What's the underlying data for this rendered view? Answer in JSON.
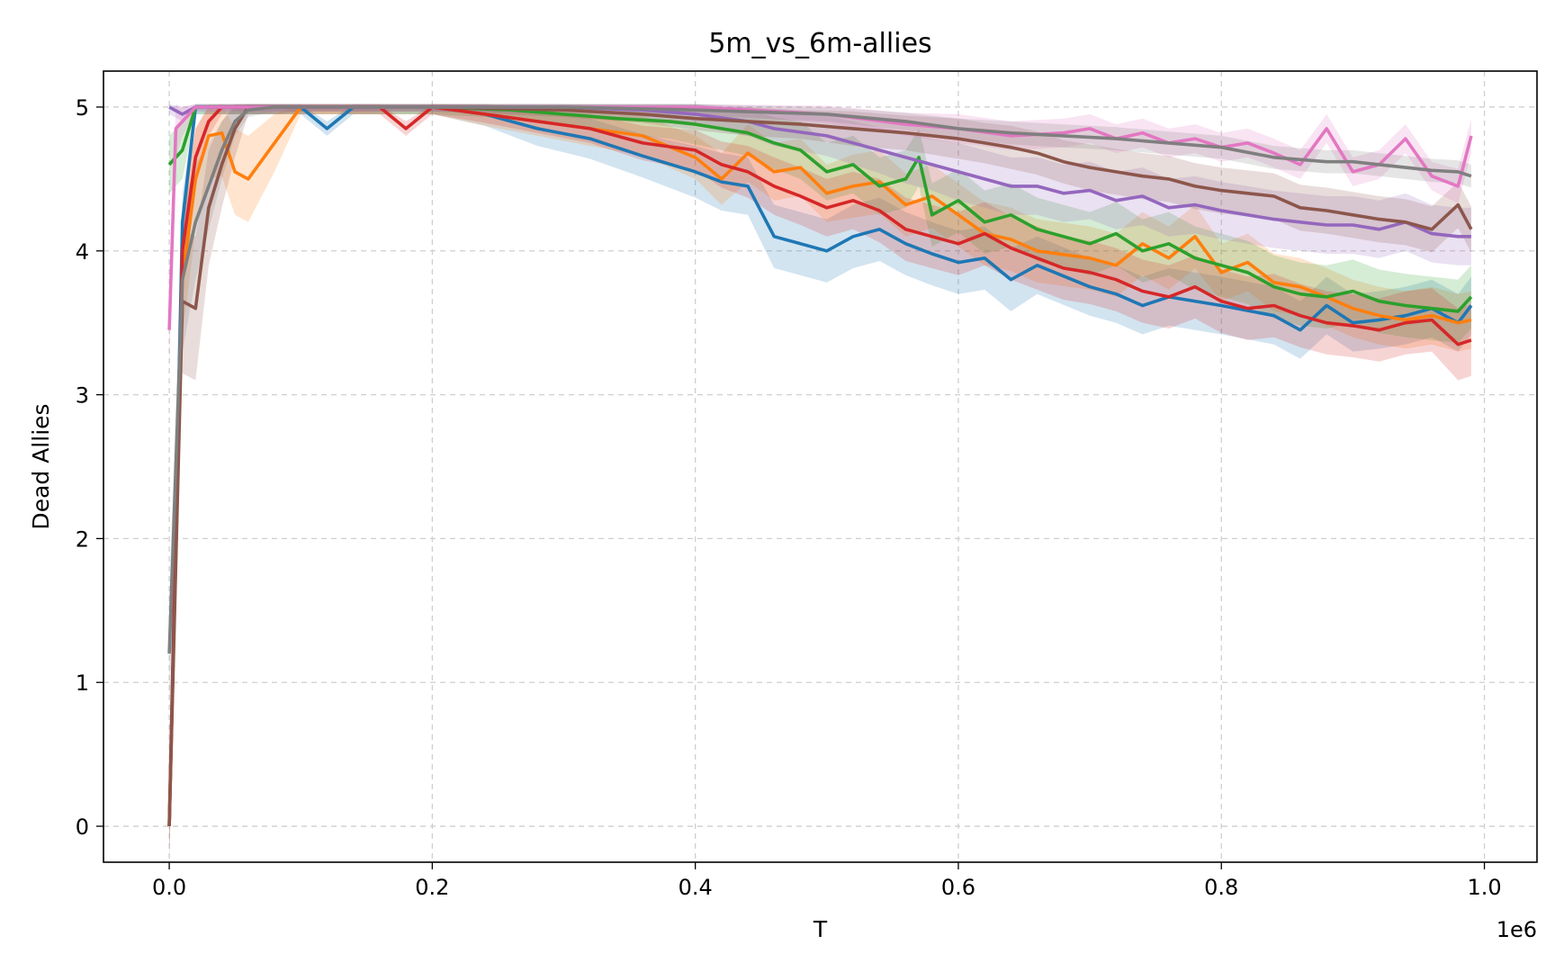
{
  "chart_data": {
    "type": "line",
    "title": "5m_vs_6m-allies",
    "xlabel": "T",
    "ylabel": "Dead Allies",
    "x_offset_label": "1e6",
    "xlim": [
      -0.05,
      1.04
    ],
    "ylim": [
      -0.25,
      5.25
    ],
    "x_ticks": [
      0.0,
      0.2,
      0.4,
      0.6,
      0.8,
      1.0
    ],
    "x_tick_labels": [
      "0.0",
      "0.2",
      "0.4",
      "0.6",
      "0.8",
      "1.0"
    ],
    "y_ticks": [
      0,
      1,
      2,
      3,
      4,
      5
    ],
    "y_tick_labels": [
      "0",
      "1",
      "2",
      "3",
      "4",
      "5"
    ],
    "grid": true,
    "legend": "none",
    "series": [
      {
        "color": "#1f77b4",
        "x": [
          0.0,
          0.01,
          0.02,
          0.04,
          0.06,
          0.1,
          0.12,
          0.14,
          0.2,
          0.24,
          0.28,
          0.32,
          0.36,
          0.4,
          0.42,
          0.44,
          0.46,
          0.48,
          0.5,
          0.52,
          0.54,
          0.56,
          0.58,
          0.6,
          0.62,
          0.64,
          0.66,
          0.7,
          0.72,
          0.74,
          0.76,
          0.8,
          0.84,
          0.86,
          0.88,
          0.9,
          0.92,
          0.94,
          0.96,
          0.98,
          0.99
        ],
        "y": [
          0.0,
          4.2,
          5.0,
          5.0,
          5.0,
          5.0,
          4.85,
          5.0,
          5.0,
          4.95,
          4.85,
          4.78,
          4.66,
          4.55,
          4.48,
          4.45,
          4.1,
          4.05,
          4.0,
          4.1,
          4.15,
          4.05,
          3.98,
          3.92,
          3.95,
          3.8,
          3.9,
          3.75,
          3.7,
          3.62,
          3.68,
          3.62,
          3.55,
          3.45,
          3.62,
          3.5,
          3.52,
          3.55,
          3.6,
          3.5,
          3.62
        ],
        "band": [
          0.2,
          0.2,
          0.05,
          0.05,
          0.05,
          0.05,
          0.05,
          0.05,
          0.05,
          0.08,
          0.12,
          0.14,
          0.15,
          0.18,
          0.2,
          0.2,
          0.22,
          0.22,
          0.22,
          0.22,
          0.22,
          0.22,
          0.22,
          0.22,
          0.22,
          0.22,
          0.2,
          0.2,
          0.2,
          0.2,
          0.2,
          0.2,
          0.2,
          0.2,
          0.2,
          0.2,
          0.2,
          0.2,
          0.2,
          0.2,
          0.2
        ]
      },
      {
        "color": "#ff7f0e",
        "x": [
          0.0,
          0.01,
          0.02,
          0.03,
          0.04,
          0.05,
          0.06,
          0.08,
          0.1,
          0.14,
          0.2,
          0.24,
          0.28,
          0.32,
          0.36,
          0.4,
          0.42,
          0.44,
          0.46,
          0.48,
          0.5,
          0.52,
          0.54,
          0.56,
          0.58,
          0.6,
          0.62,
          0.64,
          0.66,
          0.7,
          0.72,
          0.74,
          0.76,
          0.78,
          0.8,
          0.82,
          0.84,
          0.86,
          0.88,
          0.9,
          0.92,
          0.94,
          0.96,
          0.98,
          0.99
        ],
        "y": [
          0.0,
          3.8,
          4.5,
          4.8,
          4.82,
          4.55,
          4.5,
          4.75,
          5.0,
          5.0,
          5.0,
          4.95,
          4.9,
          4.85,
          4.8,
          4.65,
          4.5,
          4.68,
          4.55,
          4.58,
          4.4,
          4.45,
          4.48,
          4.32,
          4.38,
          4.25,
          4.12,
          4.08,
          4.0,
          3.95,
          3.9,
          4.05,
          3.95,
          4.1,
          3.85,
          3.92,
          3.78,
          3.75,
          3.68,
          3.6,
          3.55,
          3.52,
          3.55,
          3.5,
          3.52
        ],
        "band": [
          0.2,
          0.4,
          0.35,
          0.3,
          0.3,
          0.3,
          0.3,
          0.2,
          0.05,
          0.05,
          0.05,
          0.08,
          0.1,
          0.12,
          0.14,
          0.15,
          0.18,
          0.2,
          0.2,
          0.2,
          0.2,
          0.22,
          0.22,
          0.22,
          0.22,
          0.22,
          0.22,
          0.22,
          0.22,
          0.22,
          0.22,
          0.22,
          0.22,
          0.22,
          0.2,
          0.2,
          0.2,
          0.2,
          0.2,
          0.2,
          0.2,
          0.2,
          0.2,
          0.2,
          0.2
        ]
      },
      {
        "color": "#2ca02c",
        "x": [
          0.0,
          0.01,
          0.02,
          0.04,
          0.06,
          0.1,
          0.2,
          0.26,
          0.3,
          0.34,
          0.38,
          0.4,
          0.42,
          0.44,
          0.46,
          0.48,
          0.5,
          0.52,
          0.54,
          0.56,
          0.57,
          0.58,
          0.6,
          0.62,
          0.64,
          0.66,
          0.68,
          0.7,
          0.72,
          0.74,
          0.76,
          0.78,
          0.8,
          0.82,
          0.84,
          0.86,
          0.88,
          0.9,
          0.92,
          0.94,
          0.96,
          0.98,
          0.99
        ],
        "y": [
          4.6,
          4.7,
          5.0,
          5.0,
          5.0,
          5.0,
          5.0,
          4.98,
          4.95,
          4.92,
          4.9,
          4.88,
          4.85,
          4.82,
          4.75,
          4.7,
          4.55,
          4.6,
          4.45,
          4.5,
          4.65,
          4.25,
          4.35,
          4.2,
          4.25,
          4.15,
          4.1,
          4.05,
          4.12,
          4.0,
          4.05,
          3.95,
          3.9,
          3.85,
          3.75,
          3.7,
          3.68,
          3.72,
          3.65,
          3.62,
          3.6,
          3.58,
          3.68
        ],
        "band": [
          0.2,
          0.2,
          0.05,
          0.05,
          0.05,
          0.05,
          0.05,
          0.06,
          0.08,
          0.1,
          0.12,
          0.14,
          0.15,
          0.16,
          0.18,
          0.2,
          0.2,
          0.2,
          0.2,
          0.2,
          0.2,
          0.22,
          0.22,
          0.22,
          0.22,
          0.22,
          0.22,
          0.22,
          0.22,
          0.22,
          0.22,
          0.22,
          0.22,
          0.22,
          0.22,
          0.22,
          0.22,
          0.22,
          0.22,
          0.22,
          0.22,
          0.22,
          0.22
        ]
      },
      {
        "color": "#d62728",
        "x": [
          0.0,
          0.01,
          0.02,
          0.03,
          0.04,
          0.06,
          0.1,
          0.16,
          0.18,
          0.2,
          0.24,
          0.28,
          0.32,
          0.36,
          0.4,
          0.42,
          0.44,
          0.46,
          0.48,
          0.5,
          0.52,
          0.54,
          0.56,
          0.58,
          0.6,
          0.62,
          0.64,
          0.66,
          0.68,
          0.7,
          0.72,
          0.74,
          0.76,
          0.78,
          0.8,
          0.82,
          0.84,
          0.86,
          0.88,
          0.9,
          0.92,
          0.94,
          0.96,
          0.98,
          0.99
        ],
        "y": [
          0.0,
          4.0,
          4.65,
          4.9,
          5.0,
          5.0,
          5.0,
          5.0,
          4.85,
          5.0,
          4.95,
          4.9,
          4.85,
          4.75,
          4.7,
          4.6,
          4.55,
          4.45,
          4.38,
          4.3,
          4.35,
          4.28,
          4.15,
          4.1,
          4.05,
          4.12,
          4.02,
          3.95,
          3.88,
          3.85,
          3.8,
          3.72,
          3.68,
          3.75,
          3.65,
          3.6,
          3.62,
          3.55,
          3.5,
          3.48,
          3.45,
          3.5,
          3.52,
          3.35,
          3.38
        ],
        "band": [
          0.2,
          0.3,
          0.2,
          0.1,
          0.05,
          0.05,
          0.05,
          0.05,
          0.05,
          0.05,
          0.06,
          0.08,
          0.1,
          0.12,
          0.14,
          0.16,
          0.18,
          0.2,
          0.2,
          0.2,
          0.2,
          0.22,
          0.22,
          0.22,
          0.22,
          0.22,
          0.22,
          0.22,
          0.22,
          0.22,
          0.22,
          0.22,
          0.22,
          0.22,
          0.22,
          0.22,
          0.22,
          0.22,
          0.22,
          0.22,
          0.22,
          0.22,
          0.22,
          0.25,
          0.25
        ]
      },
      {
        "color": "#9467bd",
        "x": [
          0.0,
          0.01,
          0.02,
          0.04,
          0.1,
          0.2,
          0.3,
          0.36,
          0.4,
          0.44,
          0.46,
          0.5,
          0.52,
          0.54,
          0.56,
          0.58,
          0.6,
          0.62,
          0.64,
          0.66,
          0.68,
          0.7,
          0.72,
          0.74,
          0.76,
          0.78,
          0.8,
          0.82,
          0.84,
          0.86,
          0.88,
          0.9,
          0.92,
          0.94,
          0.96,
          0.98,
          0.99
        ],
        "y": [
          5.0,
          4.95,
          5.0,
          5.0,
          5.0,
          5.0,
          5.0,
          4.98,
          4.95,
          4.9,
          4.85,
          4.8,
          4.75,
          4.7,
          4.65,
          4.6,
          4.55,
          4.5,
          4.45,
          4.45,
          4.4,
          4.42,
          4.35,
          4.38,
          4.3,
          4.32,
          4.28,
          4.25,
          4.22,
          4.2,
          4.18,
          4.18,
          4.15,
          4.2,
          4.12,
          4.1,
          4.1
        ],
        "band": [
          0.05,
          0.05,
          0.03,
          0.03,
          0.03,
          0.03,
          0.05,
          0.06,
          0.08,
          0.1,
          0.12,
          0.14,
          0.15,
          0.16,
          0.18,
          0.18,
          0.2,
          0.2,
          0.2,
          0.2,
          0.2,
          0.2,
          0.2,
          0.2,
          0.2,
          0.2,
          0.2,
          0.2,
          0.2,
          0.2,
          0.2,
          0.2,
          0.2,
          0.2,
          0.2,
          0.2,
          0.2
        ]
      },
      {
        "color": "#8c564b",
        "x": [
          0.0,
          0.01,
          0.02,
          0.03,
          0.04,
          0.05,
          0.06,
          0.08,
          0.1,
          0.2,
          0.3,
          0.36,
          0.4,
          0.44,
          0.48,
          0.52,
          0.56,
          0.6,
          0.62,
          0.64,
          0.66,
          0.68,
          0.7,
          0.72,
          0.74,
          0.76,
          0.78,
          0.8,
          0.82,
          0.84,
          0.86,
          0.88,
          0.9,
          0.92,
          0.94,
          0.96,
          0.98,
          0.99
        ],
        "y": [
          0.0,
          3.65,
          3.6,
          4.3,
          4.6,
          4.85,
          5.0,
          5.0,
          5.0,
          5.0,
          4.98,
          4.95,
          4.92,
          4.9,
          4.88,
          4.85,
          4.82,
          4.78,
          4.75,
          4.72,
          4.68,
          4.62,
          4.58,
          4.55,
          4.52,
          4.5,
          4.45,
          4.42,
          4.4,
          4.38,
          4.3,
          4.28,
          4.25,
          4.22,
          4.2,
          4.15,
          4.32,
          4.15
        ],
        "band": [
          0.3,
          0.5,
          0.5,
          0.4,
          0.3,
          0.2,
          0.05,
          0.05,
          0.03,
          0.03,
          0.05,
          0.06,
          0.08,
          0.1,
          0.1,
          0.12,
          0.12,
          0.14,
          0.14,
          0.15,
          0.15,
          0.15,
          0.16,
          0.16,
          0.16,
          0.16,
          0.16,
          0.16,
          0.16,
          0.16,
          0.16,
          0.16,
          0.16,
          0.16,
          0.16,
          0.16,
          0.16,
          0.16
        ]
      },
      {
        "color": "#e377c2",
        "x": [
          0.0,
          0.005,
          0.01,
          0.02,
          0.04,
          0.1,
          0.2,
          0.3,
          0.4,
          0.5,
          0.56,
          0.6,
          0.64,
          0.68,
          0.7,
          0.72,
          0.74,
          0.76,
          0.78,
          0.8,
          0.82,
          0.84,
          0.86,
          0.88,
          0.9,
          0.92,
          0.94,
          0.96,
          0.98,
          0.99
        ],
        "y": [
          3.45,
          4.85,
          4.9,
          5.0,
          5.0,
          5.0,
          5.0,
          5.0,
          5.0,
          4.95,
          4.88,
          4.85,
          4.8,
          4.82,
          4.85,
          4.78,
          4.82,
          4.75,
          4.78,
          4.72,
          4.75,
          4.68,
          4.6,
          4.85,
          4.55,
          4.6,
          4.78,
          4.52,
          4.45,
          4.8
        ],
        "band": [
          0.3,
          0.2,
          0.1,
          0.03,
          0.03,
          0.03,
          0.03,
          0.03,
          0.05,
          0.06,
          0.08,
          0.1,
          0.1,
          0.1,
          0.1,
          0.1,
          0.1,
          0.1,
          0.1,
          0.1,
          0.1,
          0.1,
          0.1,
          0.1,
          0.1,
          0.1,
          0.1,
          0.1,
          0.12,
          0.12
        ]
      },
      {
        "color": "#7f7f7f",
        "x": [
          0.0,
          0.01,
          0.02,
          0.03,
          0.04,
          0.05,
          0.06,
          0.08,
          0.1,
          0.2,
          0.3,
          0.4,
          0.5,
          0.56,
          0.6,
          0.64,
          0.68,
          0.72,
          0.76,
          0.8,
          0.84,
          0.88,
          0.9,
          0.92,
          0.94,
          0.96,
          0.98,
          0.99
        ],
        "y": [
          1.2,
          3.8,
          4.2,
          4.45,
          4.7,
          4.9,
          4.98,
          5.0,
          5.0,
          5.0,
          5.0,
          4.98,
          4.95,
          4.9,
          4.85,
          4.82,
          4.8,
          4.78,
          4.75,
          4.72,
          4.65,
          4.62,
          4.62,
          4.6,
          4.58,
          4.56,
          4.55,
          4.52
        ],
        "band": [
          0.4,
          0.5,
          0.4,
          0.3,
          0.2,
          0.1,
          0.05,
          0.03,
          0.03,
          0.03,
          0.03,
          0.04,
          0.05,
          0.06,
          0.07,
          0.08,
          0.08,
          0.08,
          0.08,
          0.08,
          0.08,
          0.08,
          0.08,
          0.08,
          0.08,
          0.08,
          0.08,
          0.08
        ]
      }
    ]
  }
}
